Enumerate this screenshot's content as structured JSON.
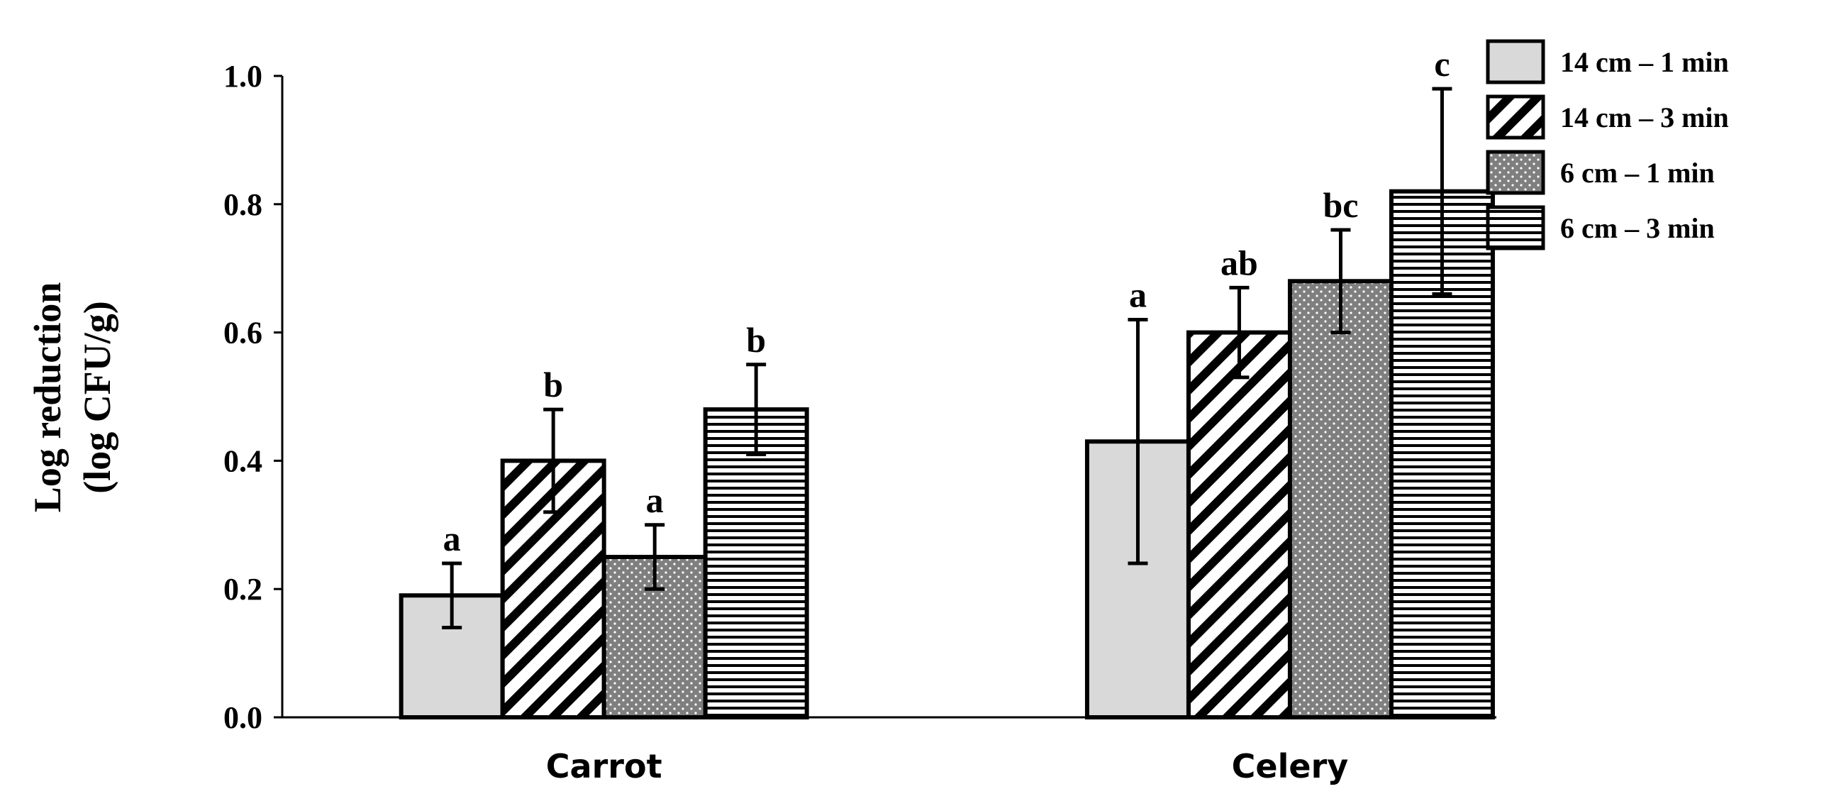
{
  "chart_data": {
    "type": "bar",
    "title": "",
    "xlabel": "",
    "ylabel_lines": [
      "Log reduction",
      "(log CFU/g)"
    ],
    "ylim": [
      0,
      1.0
    ],
    "yticks": [
      "0.0",
      "0.2",
      "0.4",
      "0.6",
      "0.8",
      "1.0"
    ],
    "grid": false,
    "legend_position": "top-right",
    "categories": [
      "Carrot",
      "Celery"
    ],
    "series": [
      {
        "name": "14 cm – 1 min",
        "pattern": "light-gray-solid",
        "values": [
          0.19,
          0.43
        ],
        "errors": [
          0.05,
          0.19
        ],
        "letters": [
          "a",
          "a"
        ]
      },
      {
        "name": "14 cm – 3 min",
        "pattern": "diagonal-hatch",
        "values": [
          0.4,
          0.6
        ],
        "errors": [
          0.08,
          0.07
        ],
        "letters": [
          "b",
          "ab"
        ]
      },
      {
        "name": "6 cm – 1 min",
        "pattern": "dark-gray-dotted",
        "values": [
          0.25,
          0.68
        ],
        "errors": [
          0.05,
          0.08
        ],
        "letters": [
          "a",
          "bc"
        ]
      },
      {
        "name": "6 cm – 3 min",
        "pattern": "horizontal-stripes",
        "values": [
          0.48,
          0.82
        ],
        "errors": [
          0.07,
          0.16
        ],
        "letters": [
          "b",
          "c"
        ]
      }
    ]
  },
  "colors": {
    "light_gray": "#d9d9d9",
    "dark_gray": "#7f7f7f",
    "stroke": "#000000"
  }
}
